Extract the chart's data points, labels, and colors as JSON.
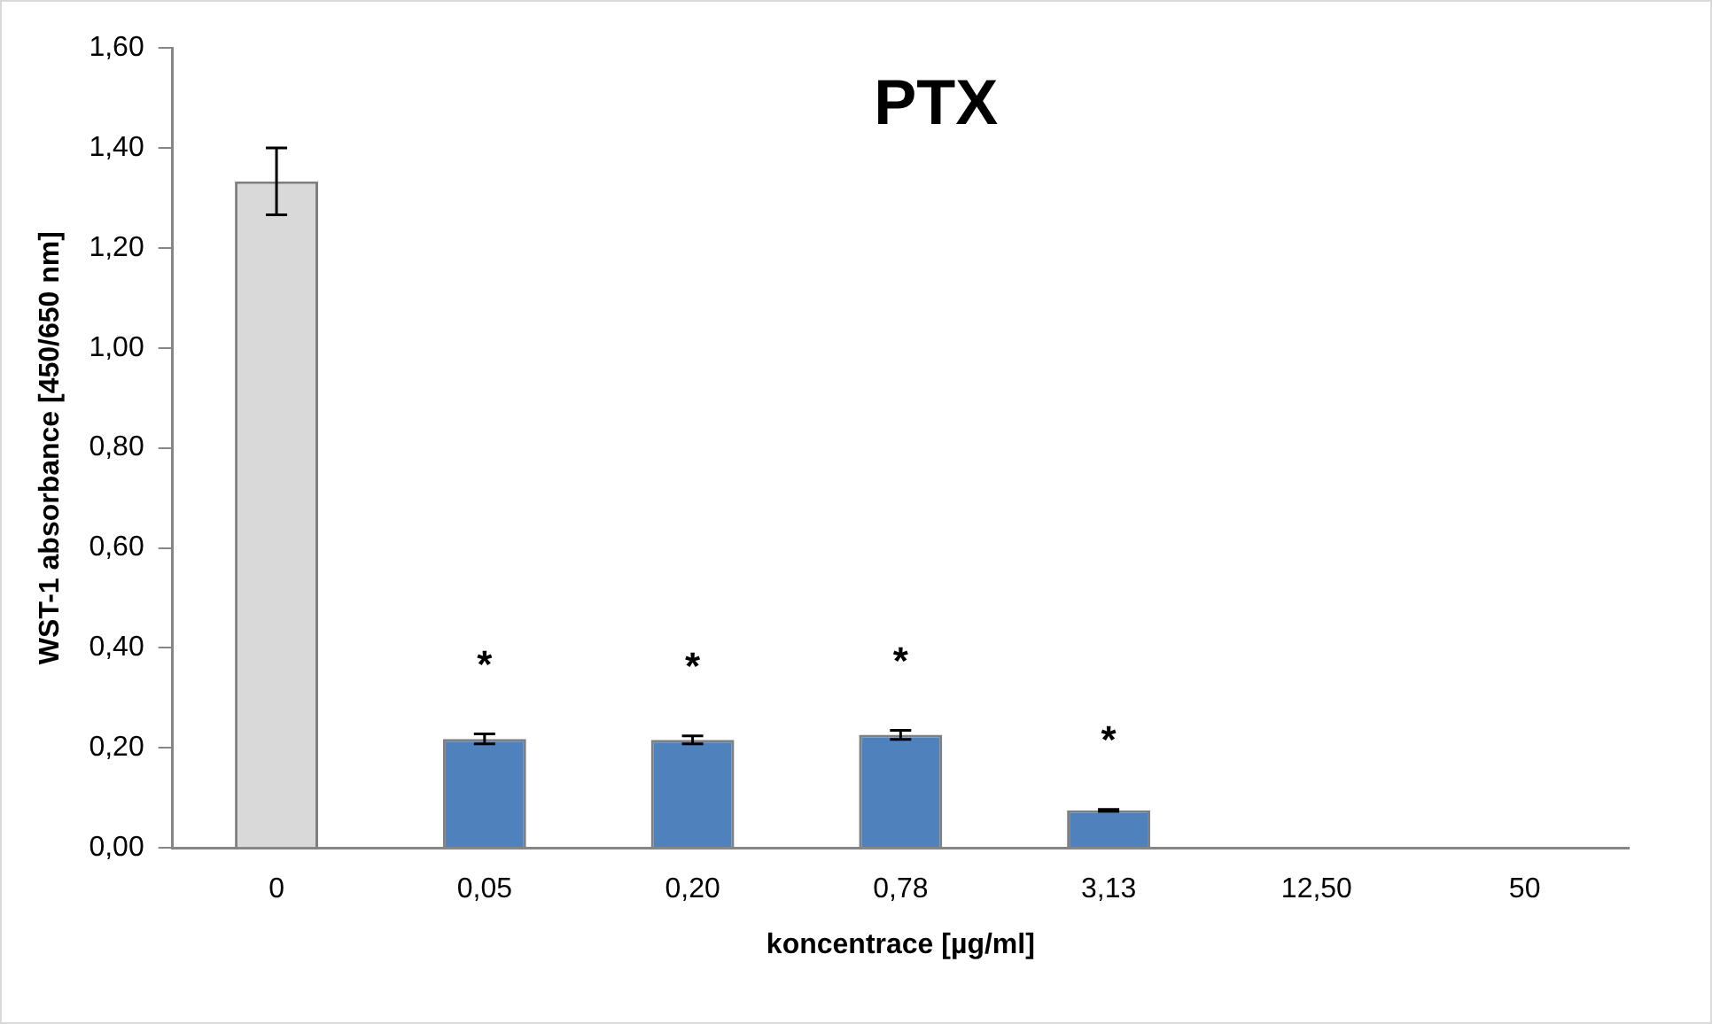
{
  "chart_data": {
    "type": "bar",
    "title": "PTX",
    "xlabel": "koncentrace [µg/ml]",
    "ylabel": "WST-1 absorbance [450/650 nm]",
    "categories": [
      "0",
      "0,05",
      "0,20",
      "0,78",
      "3,13",
      "12,50",
      "50"
    ],
    "values": [
      1.333,
      0.218,
      0.216,
      0.226,
      0.075,
      0,
      0
    ],
    "errors": [
      0.067,
      0.01,
      0.008,
      0.009,
      0.002,
      null,
      null
    ],
    "colors": [
      "#d9d9d9",
      "#4f81bd",
      "#4f81bd",
      "#4f81bd",
      "#4f81bd",
      "#4f81bd",
      "#4f81bd"
    ],
    "ylim": [
      0,
      1.6
    ],
    "yticks": [
      {
        "value": 0,
        "label": "0,00"
      },
      {
        "value": 0.2,
        "label": "0,20"
      },
      {
        "value": 0.4,
        "label": "0,40"
      },
      {
        "value": 0.6,
        "label": "0,60"
      },
      {
        "value": 0.8,
        "label": "0,80"
      },
      {
        "value": 1,
        "label": "1,00"
      },
      {
        "value": 1.2,
        "label": "1,20"
      },
      {
        "value": 1.4,
        "label": "1,40"
      },
      {
        "value": 1.6,
        "label": "1,60"
      }
    ],
    "annotations": [
      "*",
      "*",
      "*",
      "*"
    ],
    "grid": false,
    "legend": false
  }
}
